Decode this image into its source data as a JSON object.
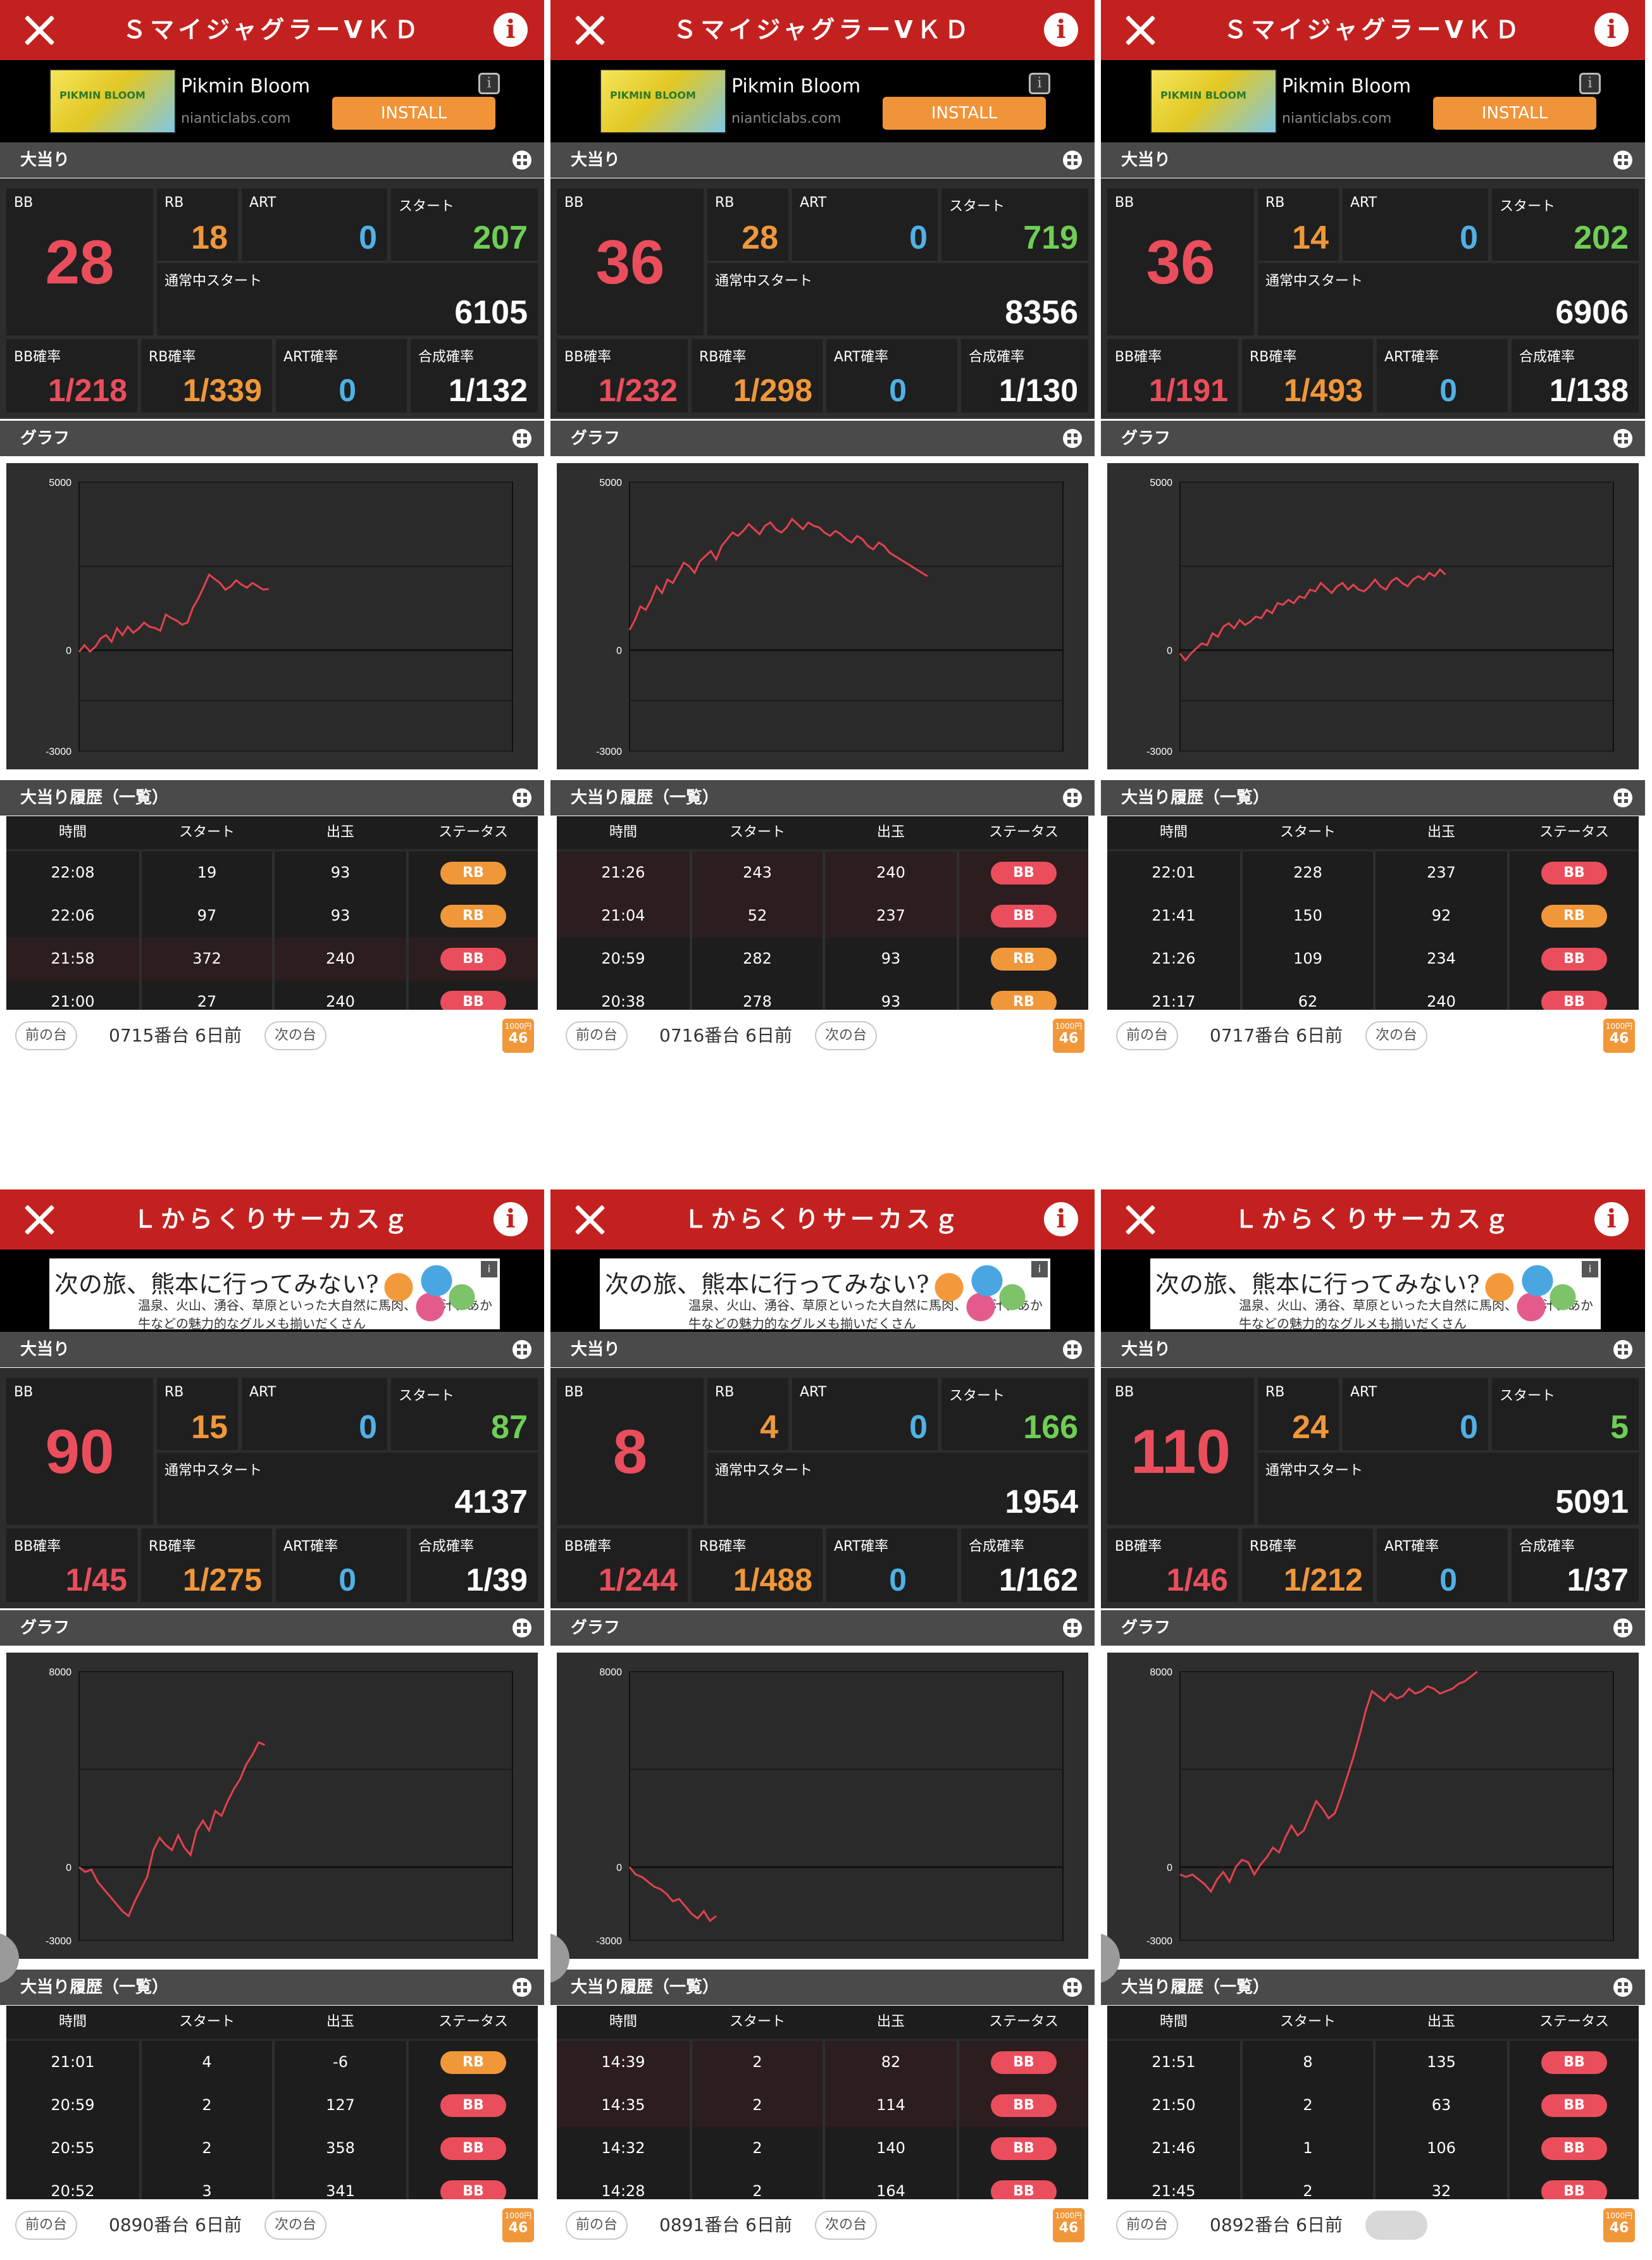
{
  "panels": [
    {
      "title": "ＳマイジャグラーⅤＫＤ",
      "ad": {
        "type": "app",
        "name": "Pikmin Bloom",
        "domain": "nianticlabs.com",
        "button": "INSTALL",
        "thumb_text": "PIKMIN BLOOM"
      },
      "sections": {
        "stats": "大当り",
        "graph": "グラフ",
        "history": "大当り履歴（一覧）"
      },
      "stats": {
        "bb_label": "BB",
        "bb": "28",
        "rb_label": "RB",
        "rb": "18",
        "art_label": "ART",
        "art": "0",
        "start_label": "スタート",
        "start": "207",
        "normal_label": "通常中スタート",
        "normal_start": "6105",
        "bb_rate_label": "BB確率",
        "bb_rate": "1/218",
        "rb_rate_label": "RB確率",
        "rb_rate": "1/339",
        "art_rate_label": "ART確率",
        "art_rate": "0",
        "total_rate_label": "合成確率",
        "total_rate": "1/132"
      },
      "chart_data": {
        "type": "line",
        "ylim": [
          -3000,
          5000
        ],
        "ytick_labels": [
          "5000",
          "0",
          "-3000"
        ],
        "gridlines": [
          5000,
          2500,
          0,
          -1500,
          -3000
        ],
        "x": [
          0,
          1,
          2,
          3,
          4,
          5,
          6,
          7,
          8,
          9,
          10,
          11,
          12,
          13,
          14,
          15,
          16,
          17,
          18,
          19,
          20,
          21,
          22,
          23,
          24,
          25,
          26,
          27,
          28,
          29,
          30,
          31,
          32,
          33,
          34,
          35
        ],
        "y": [
          -50,
          150,
          -40,
          100,
          350,
          450,
          250,
          650,
          450,
          700,
          520,
          640,
          820,
          700,
          660,
          580,
          1060,
          960,
          880,
          760,
          820,
          1260,
          1540,
          1880,
          2250,
          2120,
          2000,
          1800,
          1900,
          2080,
          1950,
          1860,
          2000,
          1900,
          1800,
          1820
        ],
        "xmax": 80
      }
    },
    {
      "title": "ＳマイジャグラーⅤＫＤ",
      "ad": {
        "type": "app",
        "name": "Pikmin Bloom",
        "domain": "nianticlabs.com",
        "button": "INSTALL",
        "thumb_text": "PIKMIN BLOOM"
      },
      "sections": {
        "stats": "大当り",
        "graph": "グラフ",
        "history": "大当り履歴（一覧）"
      },
      "stats": {
        "bb_label": "BB",
        "bb": "36",
        "rb_label": "RB",
        "rb": "28",
        "art_label": "ART",
        "art": "0",
        "start_label": "スタート",
        "start": "719",
        "normal_label": "通常中スタート",
        "normal_start": "8356",
        "bb_rate_label": "BB確率",
        "bb_rate": "1/232",
        "rb_rate_label": "RB確率",
        "rb_rate": "1/298",
        "art_rate_label": "ART確率",
        "art_rate": "0",
        "total_rate_label": "合成確率",
        "total_rate": "1/130"
      },
      "chart_data": {
        "type": "line",
        "ylim": [
          -3000,
          5000
        ],
        "ytick_labels": [
          "5000",
          "0",
          "-3000"
        ],
        "gridlines": [
          5000,
          2500,
          0,
          -1500,
          -3000
        ],
        "x": [
          0,
          1,
          2,
          3,
          4,
          5,
          6,
          7,
          8,
          9,
          10,
          11,
          12,
          13,
          14,
          15,
          16,
          17,
          18,
          19,
          20,
          21,
          22,
          23,
          24,
          25,
          26,
          27,
          28,
          29,
          30,
          31,
          32,
          33,
          34,
          35,
          36,
          37,
          38,
          39,
          40,
          41,
          42,
          43,
          44,
          45,
          46,
          47,
          48,
          49,
          50,
          51,
          52,
          53,
          54,
          55
        ],
        "y": [
          600,
          900,
          1300,
          1200,
          1500,
          1900,
          1700,
          2100,
          2000,
          2300,
          2600,
          2500,
          2300,
          2650,
          2800,
          2950,
          2700,
          3100,
          3300,
          3500,
          3400,
          3550,
          3750,
          3600,
          3450,
          3700,
          3800,
          3600,
          3500,
          3650,
          3900,
          3750,
          3600,
          3800,
          3700,
          3650,
          3500,
          3400,
          3550,
          3450,
          3300,
          3200,
          3400,
          3300,
          3100,
          3000,
          3200,
          3100,
          2900,
          2800,
          2700,
          2600,
          2500,
          2400,
          2300,
          2200
        ],
        "xmax": 80
      }
    },
    {
      "title": "ＳマイジャグラーⅤＫＤ",
      "ad": {
        "type": "app",
        "name": "Pikmin Bloom",
        "domain": "nianticlabs.com",
        "button": "INSTALL",
        "thumb_text": "PIKMIN BLOOM"
      },
      "sections": {
        "stats": "大当り",
        "graph": "グラフ",
        "history": "大当り履歴（一覧）"
      },
      "stats": {
        "bb_label": "BB",
        "bb": "36",
        "rb_label": "RB",
        "rb": "14",
        "art_label": "ART",
        "art": "0",
        "start_label": "スタート",
        "start": "202",
        "normal_label": "通常中スタート",
        "normal_start": "6906",
        "bb_rate_label": "BB確率",
        "bb_rate": "1/191",
        "rb_rate_label": "RB確率",
        "rb_rate": "1/493",
        "art_rate_label": "ART確率",
        "art_rate": "0",
        "total_rate_label": "合成確率",
        "total_rate": "1/138"
      },
      "chart_data": {
        "type": "line",
        "ylim": [
          -3000,
          5000
        ],
        "ytick_labels": [
          "5000",
          "0",
          "-3000"
        ],
        "gridlines": [
          5000,
          2500,
          0,
          -1500,
          -3000
        ],
        "x": [
          0,
          1,
          2,
          3,
          4,
          5,
          6,
          7,
          8,
          9,
          10,
          11,
          12,
          13,
          14,
          15,
          16,
          17,
          18,
          19,
          20,
          21,
          22,
          23,
          24,
          25,
          26,
          27,
          28,
          29,
          30,
          31,
          32,
          33,
          34,
          35,
          36,
          37,
          38,
          39,
          40,
          41,
          42,
          43,
          44,
          45,
          46,
          47,
          48,
          49
        ],
        "y": [
          -100,
          -300,
          -100,
          50,
          200,
          150,
          500,
          400,
          700,
          800,
          650,
          900,
          750,
          850,
          1000,
          950,
          1200,
          1100,
          1400,
          1350,
          1500,
          1400,
          1600,
          1550,
          1800,
          1750,
          2000,
          1850,
          1700,
          1900,
          2000,
          1800,
          1950,
          1800,
          1750,
          1900,
          2100,
          1900,
          1800,
          2050,
          2150,
          2000,
          1900,
          2100,
          2200,
          2100,
          2300,
          2200,
          2400,
          2250
        ],
        "xmax": 80
      }
    },
    {
      "title": "Ｌからくりサーカスｇ",
      "ad": {
        "type": "banner",
        "line1": "次の旅、熊本に行ってみない?",
        "line2": "温泉、火山、湧谷、草原といった大自然に馬肉、たご汁、あか牛などの魅力的なグルメも揃いだくさん"
      },
      "sections": {
        "stats": "大当り",
        "graph": "グラフ",
        "history": "大当り履歴（一覧）"
      },
      "stats": {
        "bb_label": "BB",
        "bb": "90",
        "rb_label": "RB",
        "rb": "15",
        "art_label": "ART",
        "art": "0",
        "start_label": "スタート",
        "start": "87",
        "normal_label": "通常中スタート",
        "normal_start": "4137",
        "bb_rate_label": "BB確率",
        "bb_rate": "1/45",
        "rb_rate_label": "RB確率",
        "rb_rate": "1/275",
        "art_rate_label": "ART確率",
        "art_rate": "0",
        "total_rate_label": "合成確率",
        "total_rate": "1/39"
      },
      "chart_data": {
        "type": "line",
        "ylim": [
          -3000,
          8000
        ],
        "ytick_labels": [
          "8000",
          "0",
          "-3000"
        ],
        "gridlines": [
          8000,
          4000,
          0,
          -3000
        ],
        "x": [
          0,
          1,
          2,
          3,
          4,
          5,
          6,
          7,
          8,
          9,
          10,
          11,
          12,
          13,
          14,
          15,
          16,
          17,
          18,
          19,
          20,
          21,
          22,
          23,
          24,
          25,
          26,
          27,
          28,
          29,
          30
        ],
        "y": [
          0,
          -200,
          -100,
          -600,
          -900,
          -1200,
          -1500,
          -1800,
          -2000,
          -1400,
          -900,
          -400,
          700,
          1200,
          900,
          700,
          1300,
          800,
          500,
          1500,
          1900,
          1500,
          2300,
          2100,
          2700,
          3200,
          3600,
          4200,
          4600,
          5100,
          5000
        ],
        "xmax": 70
      }
    },
    {
      "title": "Ｌからくりサーカスｇ",
      "ad": {
        "type": "banner",
        "line1": "次の旅、熊本に行ってみない?",
        "line2": "温泉、火山、湧谷、草原といった大自然に馬肉、たご汁、あか牛などの魅力的なグルメも揃いだくさん"
      },
      "sections": {
        "stats": "大当り",
        "graph": "グラフ",
        "history": "大当り履歴（一覧）"
      },
      "stats": {
        "bb_label": "BB",
        "bb": "8",
        "rb_label": "RB",
        "rb": "4",
        "art_label": "ART",
        "art": "0",
        "start_label": "スタート",
        "start": "166",
        "normal_label": "通常中スタート",
        "normal_start": "1954",
        "bb_rate_label": "BB確率",
        "bb_rate": "1/244",
        "rb_rate_label": "RB確率",
        "rb_rate": "1/488",
        "art_rate_label": "ART確率",
        "art_rate": "0",
        "total_rate_label": "合成確率",
        "total_rate": "1/162"
      },
      "chart_data": {
        "type": "line",
        "ylim": [
          -3000,
          8000
        ],
        "ytick_labels": [
          "8000",
          "0",
          "-3000"
        ],
        "gridlines": [
          8000,
          4000,
          0,
          -3000
        ],
        "x": [
          0,
          1,
          2,
          3,
          4,
          5,
          6,
          7,
          8,
          9,
          10,
          11,
          12,
          13,
          14
        ],
        "y": [
          0,
          -300,
          -400,
          -600,
          -800,
          -900,
          -1100,
          -1400,
          -1300,
          -1600,
          -1900,
          -2100,
          -1800,
          -2200,
          -2000
        ],
        "xmax": 70
      }
    },
    {
      "title": "Ｌからくりサーカスｇ",
      "ad": {
        "type": "banner",
        "line1": "次の旅、熊本に行ってみない?",
        "line2": "温泉、火山、湧谷、草原といった大自然に馬肉、たご汁、あか牛などの魅力的なグルメも揃いだくさん"
      },
      "sections": {
        "stats": "大当り",
        "graph": "グラフ",
        "history": "大当り履歴（一覧）"
      },
      "stats": {
        "bb_label": "BB",
        "bb": "110",
        "rb_label": "RB",
        "rb": "24",
        "art_label": "ART",
        "art": "0",
        "start_label": "スタート",
        "start": "5",
        "normal_label": "通常中スタート",
        "normal_start": "5091",
        "bb_rate_label": "BB確率",
        "bb_rate": "1/46",
        "rb_rate_label": "RB確率",
        "rb_rate": "1/212",
        "art_rate_label": "ART確率",
        "art_rate": "0",
        "total_rate_label": "合成確率",
        "total_rate": "1/37"
      },
      "chart_data": {
        "type": "line",
        "ylim": [
          -3000,
          8000
        ],
        "ytick_labels": [
          "8000",
          "0",
          "-3000"
        ],
        "gridlines": [
          8000,
          4000,
          0,
          -3000
        ],
        "x": [
          0,
          1,
          2,
          3,
          4,
          5,
          6,
          7,
          8,
          9,
          10,
          11,
          12,
          13,
          14,
          15,
          16,
          17,
          18,
          19,
          20,
          21,
          22,
          23,
          24,
          25,
          26,
          27,
          28,
          29,
          30,
          31,
          32,
          33,
          34,
          35,
          36,
          37,
          38,
          39,
          40,
          41,
          42,
          43,
          44,
          45,
          46,
          47,
          48
        ],
        "y": [
          -300,
          -400,
          -300,
          -500,
          -700,
          -1000,
          -500,
          -200,
          -600,
          0,
          300,
          200,
          -300,
          100,
          400,
          800,
          600,
          1200,
          1700,
          1300,
          1500,
          2100,
          2700,
          2400,
          2000,
          2200,
          2900,
          3700,
          4500,
          5400,
          6400,
          7200,
          7000,
          6800,
          7100,
          6900,
          7000,
          7300,
          7100,
          7200,
          7400,
          7300,
          7100,
          7200,
          7300,
          7500,
          7600,
          7800,
          8000
        ],
        "xmax": 70
      }
    }
  ],
  "histories": [
    {
      "headers": [
        "時間",
        "スタート",
        "出玉",
        "ステータス"
      ],
      "rows": [
        [
          "22:08",
          "19",
          "93",
          "RB"
        ],
        [
          "22:06",
          "97",
          "93",
          "RB"
        ],
        [
          "21:58",
          "372",
          "240",
          "BB"
        ],
        [
          "21:00",
          "27",
          "240",
          "BB"
        ]
      ]
    },
    {
      "headers": [
        "時間",
        "スタート",
        "出玉",
        "ステータス"
      ],
      "rows": [
        [
          "21:26",
          "243",
          "240",
          "BB"
        ],
        [
          "21:04",
          "52",
          "237",
          "BB"
        ],
        [
          "20:59",
          "282",
          "93",
          "RB"
        ],
        [
          "20:38",
          "278",
          "93",
          "RB"
        ]
      ]
    },
    {
      "headers": [
        "時間",
        "スタート",
        "出玉",
        "ステータス"
      ],
      "rows": [
        [
          "22:01",
          "228",
          "237",
          "BB"
        ],
        [
          "21:41",
          "150",
          "92",
          "RB"
        ],
        [
          "21:26",
          "109",
          "234",
          "BB"
        ],
        [
          "21:17",
          "62",
          "240",
          "BB"
        ]
      ]
    },
    {
      "headers": [
        "時間",
        "スタート",
        "出玉",
        "ステータス"
      ],
      "rows": [
        [
          "21:01",
          "4",
          "-6",
          "RB"
        ],
        [
          "20:59",
          "2",
          "127",
          "BB"
        ],
        [
          "20:55",
          "2",
          "358",
          "BB"
        ],
        [
          "20:52",
          "3",
          "341",
          "BB"
        ]
      ]
    },
    {
      "headers": [
        "時間",
        "スタート",
        "出玉",
        "ステータス"
      ],
      "rows": [
        [
          "14:39",
          "2",
          "82",
          "BB"
        ],
        [
          "14:35",
          "2",
          "114",
          "BB"
        ],
        [
          "14:32",
          "2",
          "140",
          "BB"
        ],
        [
          "14:28",
          "2",
          "164",
          "BB"
        ]
      ]
    },
    {
      "headers": [
        "時間",
        "スタート",
        "出玉",
        "ステータス"
      ],
      "rows": [
        [
          "21:51",
          "8",
          "135",
          "BB"
        ],
        [
          "21:50",
          "2",
          "63",
          "BB"
        ],
        [
          "21:46",
          "1",
          "106",
          "BB"
        ],
        [
          "21:45",
          "2",
          "32",
          "BB"
        ]
      ]
    }
  ],
  "footers": [
    {
      "prev": "前の台",
      "label": "0715番台 6日前",
      "next": "次の台",
      "badge_top": "1000円",
      "badge_num": "46",
      "next_enabled": true
    },
    {
      "prev": "前の台",
      "label": "0716番台 6日前",
      "next": "次の台",
      "badge_top": "1000円",
      "badge_num": "46",
      "next_enabled": true
    },
    {
      "prev": "前の台",
      "label": "0717番台 6日前",
      "next": "次の台",
      "badge_top": "1000円",
      "badge_num": "46",
      "next_enabled": true
    },
    {
      "prev": "前の台",
      "label": "0890番台 6日前",
      "next": "次の台",
      "badge_top": "1000円",
      "badge_num": "46",
      "next_enabled": true
    },
    {
      "prev": "前の台",
      "label": "0891番台 6日前",
      "next": "次の台",
      "badge_top": "1000円",
      "badge_num": "46",
      "next_enabled": true
    },
    {
      "prev": "前の台",
      "label": "0892番台 6日前",
      "next": "次の台",
      "badge_top": "1000円",
      "badge_num": "46",
      "next_enabled": false
    }
  ],
  "colors": {
    "titlebar": "#c3211f",
    "bb": "#ea4e5c",
    "rb": "#f0973a",
    "art": "#4fb1e6",
    "start": "#6fce55",
    "line": "#e2414f"
  }
}
